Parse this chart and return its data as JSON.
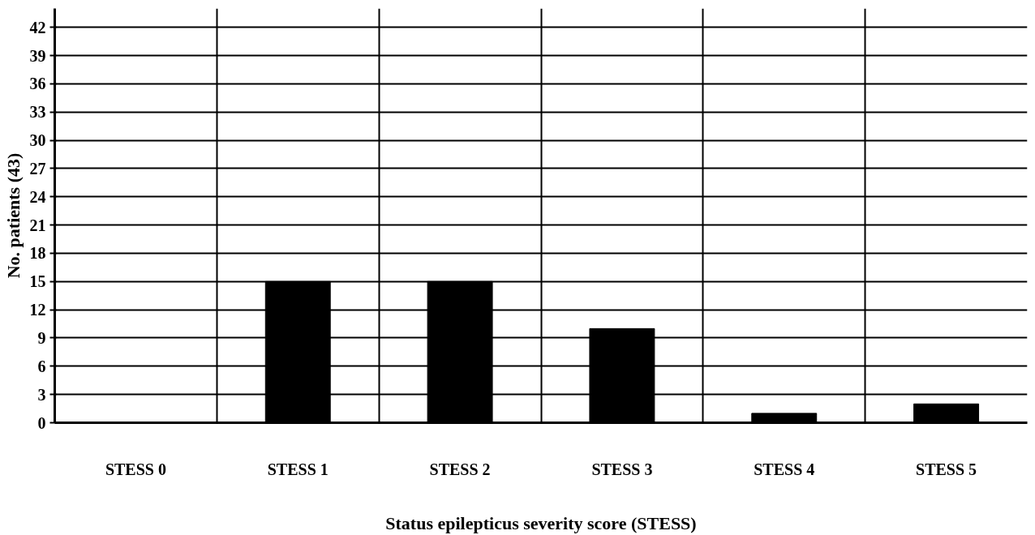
{
  "chart_data": {
    "type": "bar",
    "xlabel": "Status epilepticus severity score (STESS)",
    "ylabel": "No. patients (43)",
    "categories": [
      "STESS 0",
      "STESS 1",
      "STESS 2",
      "STESS 3",
      "STESS 4",
      "STESS 5"
    ],
    "values": [
      0,
      15,
      15,
      10,
      1,
      2
    ],
    "color": "#000000",
    "ylim": [
      0,
      44
    ],
    "yticks": [
      0,
      3,
      6,
      9,
      12,
      15,
      18,
      21,
      24,
      27,
      30,
      33,
      36,
      39,
      42
    ],
    "grid": true
  }
}
